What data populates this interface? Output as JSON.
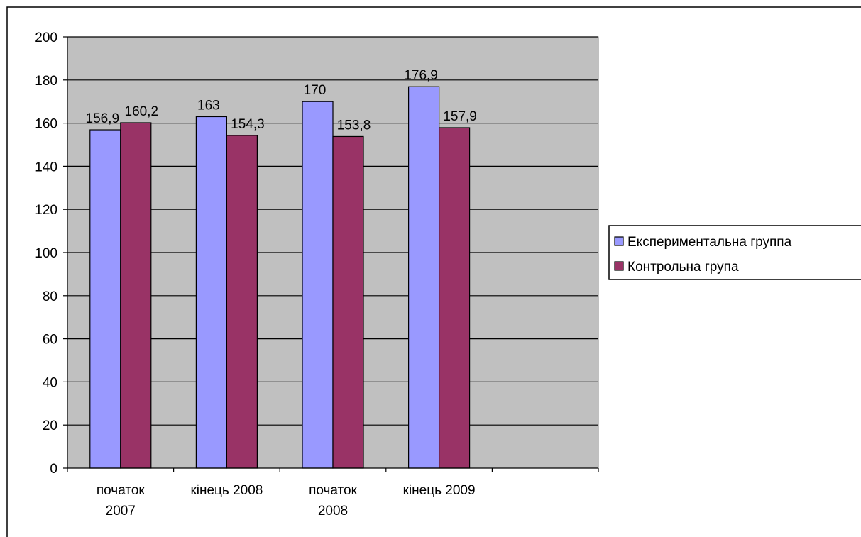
{
  "chart_data": {
    "type": "bar",
    "categories": [
      [
        "початок",
        "2007"
      ],
      [
        "кінець 2008"
      ],
      [
        "початок",
        "2008"
      ],
      [
        "кінець 2009"
      ],
      []
    ],
    "series": [
      {
        "name": "Експериментальна группа",
        "color": "#9999ff",
        "values": [
          156.9,
          163,
          170,
          176.9,
          null
        ],
        "labels": [
          "156,9",
          "163",
          "170",
          "176,9",
          ""
        ]
      },
      {
        "name": "Контрольна група",
        "color": "#993366",
        "values": [
          160.2,
          154.3,
          153.8,
          157.9,
          null
        ],
        "labels": [
          "160,2",
          "154,3",
          "153,8",
          "157,9",
          ""
        ]
      }
    ],
    "title": "",
    "xlabel": "",
    "ylabel": "",
    "ylim": [
      0,
      200
    ],
    "yticks": [
      0,
      20,
      40,
      60,
      80,
      100,
      120,
      140,
      160,
      180,
      200
    ],
    "grid": true,
    "plot_background": "#c0c0c0",
    "legend_position": "right"
  }
}
